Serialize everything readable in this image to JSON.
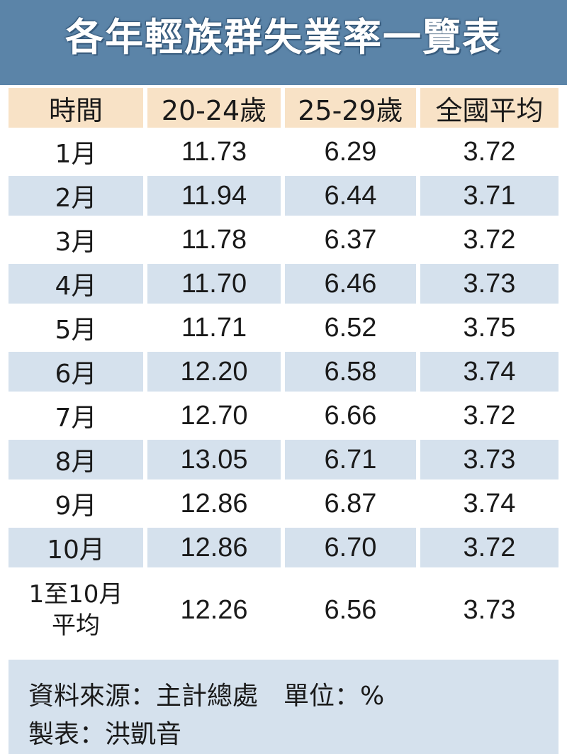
{
  "title": "各年輕族群失業率一覽表",
  "table": {
    "headers": [
      "時間",
      "20-24歲",
      "25-29歲",
      "全國平均"
    ],
    "rows": [
      [
        "1月",
        "11.73",
        "6.29",
        "3.72"
      ],
      [
        "2月",
        "11.94",
        "6.44",
        "3.71"
      ],
      [
        "3月",
        "11.78",
        "6.37",
        "3.72"
      ],
      [
        "4月",
        "11.70",
        "6.46",
        "3.73"
      ],
      [
        "5月",
        "11.71",
        "6.52",
        "3.75"
      ],
      [
        "6月",
        "12.20",
        "6.58",
        "3.74"
      ],
      [
        "7月",
        "12.70",
        "6.66",
        "3.72"
      ],
      [
        "8月",
        "13.05",
        "6.71",
        "3.73"
      ],
      [
        "9月",
        "12.86",
        "6.87",
        "3.74"
      ],
      [
        "10月",
        "12.86",
        "6.70",
        "3.72"
      ]
    ],
    "average_row": {
      "label_line1": "1至10月",
      "label_line2": "平均",
      "values": [
        "12.26",
        "6.56",
        "3.73"
      ]
    }
  },
  "footer": {
    "source": "資料來源：主計總處　單位：%",
    "author": "製表：洪凱音"
  },
  "colors": {
    "banner": "#5b84a8",
    "header_bg": "#f8e2c6",
    "row_shade": "#d5e1ed"
  }
}
